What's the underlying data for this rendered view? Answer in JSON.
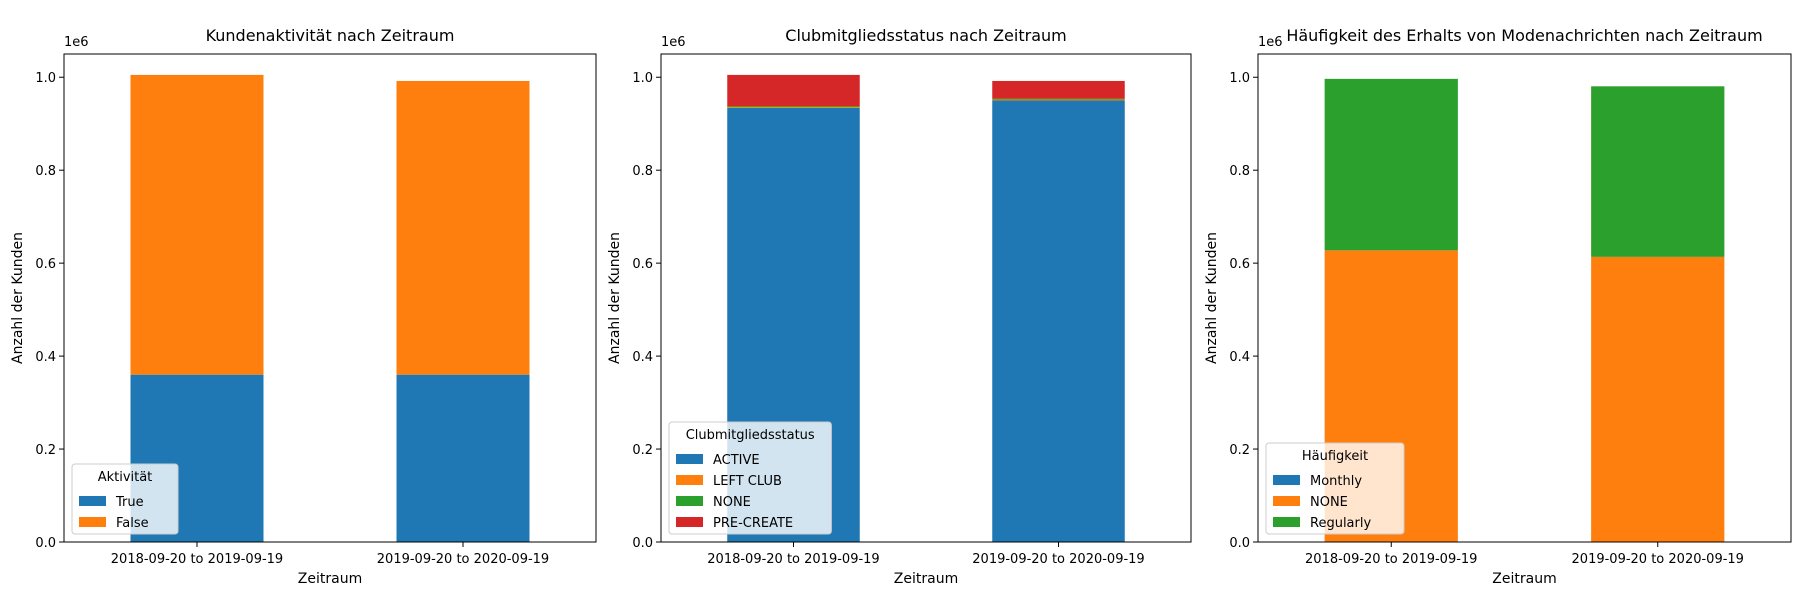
{
  "chart_data": [
    {
      "type": "bar",
      "stacked": true,
      "title": "Kundenaktivität nach Zeitraum",
      "xlabel": "Zeitraum",
      "ylabel": "Anzahl der Kunden",
      "ylim": [
        0,
        1050000
      ],
      "offset_label": "1e6",
      "yticks": [
        "0.0",
        "0.2",
        "0.4",
        "0.6",
        "0.8",
        "1.0"
      ],
      "categories": [
        "2018-09-20 to 2019-09-19",
        "2019-09-20 to 2020-09-19"
      ],
      "legend_title": "Aktivität",
      "legend_position": "lower-left",
      "series": [
        {
          "name": "True",
          "color": "#1f77b4",
          "values": [
            360000,
            360000
          ]
        },
        {
          "name": "False",
          "color": "#ff7f0e",
          "values": [
            645000,
            632000
          ]
        }
      ]
    },
    {
      "type": "bar",
      "stacked": true,
      "title": "Clubmitgliedsstatus nach Zeitraum",
      "xlabel": "Zeitraum",
      "ylabel": "Anzahl der Kunden",
      "ylim": [
        0,
        1050000
      ],
      "offset_label": "1e6",
      "yticks": [
        "0.0",
        "0.2",
        "0.4",
        "0.6",
        "0.8",
        "1.0"
      ],
      "categories": [
        "2018-09-20 to 2019-09-19",
        "2019-09-20 to 2020-09-19"
      ],
      "legend_title": "Clubmitgliedsstatus",
      "legend_position": "lower-left",
      "series": [
        {
          "name": "ACTIVE",
          "color": "#1f77b4",
          "values": [
            934000,
            950000
          ]
        },
        {
          "name": "LEFT CLUB",
          "color": "#ff7f0e",
          "values": [
            2000,
            2000
          ]
        },
        {
          "name": "NONE",
          "color": "#2ca02c",
          "values": [
            2000,
            2000
          ]
        },
        {
          "name": "PRE-CREATE",
          "color": "#d62728",
          "values": [
            67000,
            38000
          ]
        }
      ]
    },
    {
      "type": "bar",
      "stacked": true,
      "title": "Häufigkeit des Erhalts von Modenachrichten nach Zeitraum",
      "xlabel": "Zeitraum",
      "ylabel": "Anzahl der Kunden",
      "ylim": [
        0,
        1050000
      ],
      "offset_label": "1e6",
      "yticks": [
        "0.0",
        "0.2",
        "0.4",
        "0.6",
        "0.8",
        "1.0"
      ],
      "categories": [
        "2018-09-20 to 2019-09-19",
        "2019-09-20 to 2020-09-19"
      ],
      "legend_title": "Häufigkeit",
      "legend_position": "lower-left",
      "series": [
        {
          "name": "Monthly",
          "color": "#1f77b4",
          "values": [
            500,
            500
          ]
        },
        {
          "name": "NONE",
          "color": "#ff7f0e",
          "values": [
            627000,
            613000
          ]
        },
        {
          "name": "Regularly",
          "color": "#2ca02c",
          "values": [
            369000,
            367000
          ]
        }
      ]
    }
  ]
}
